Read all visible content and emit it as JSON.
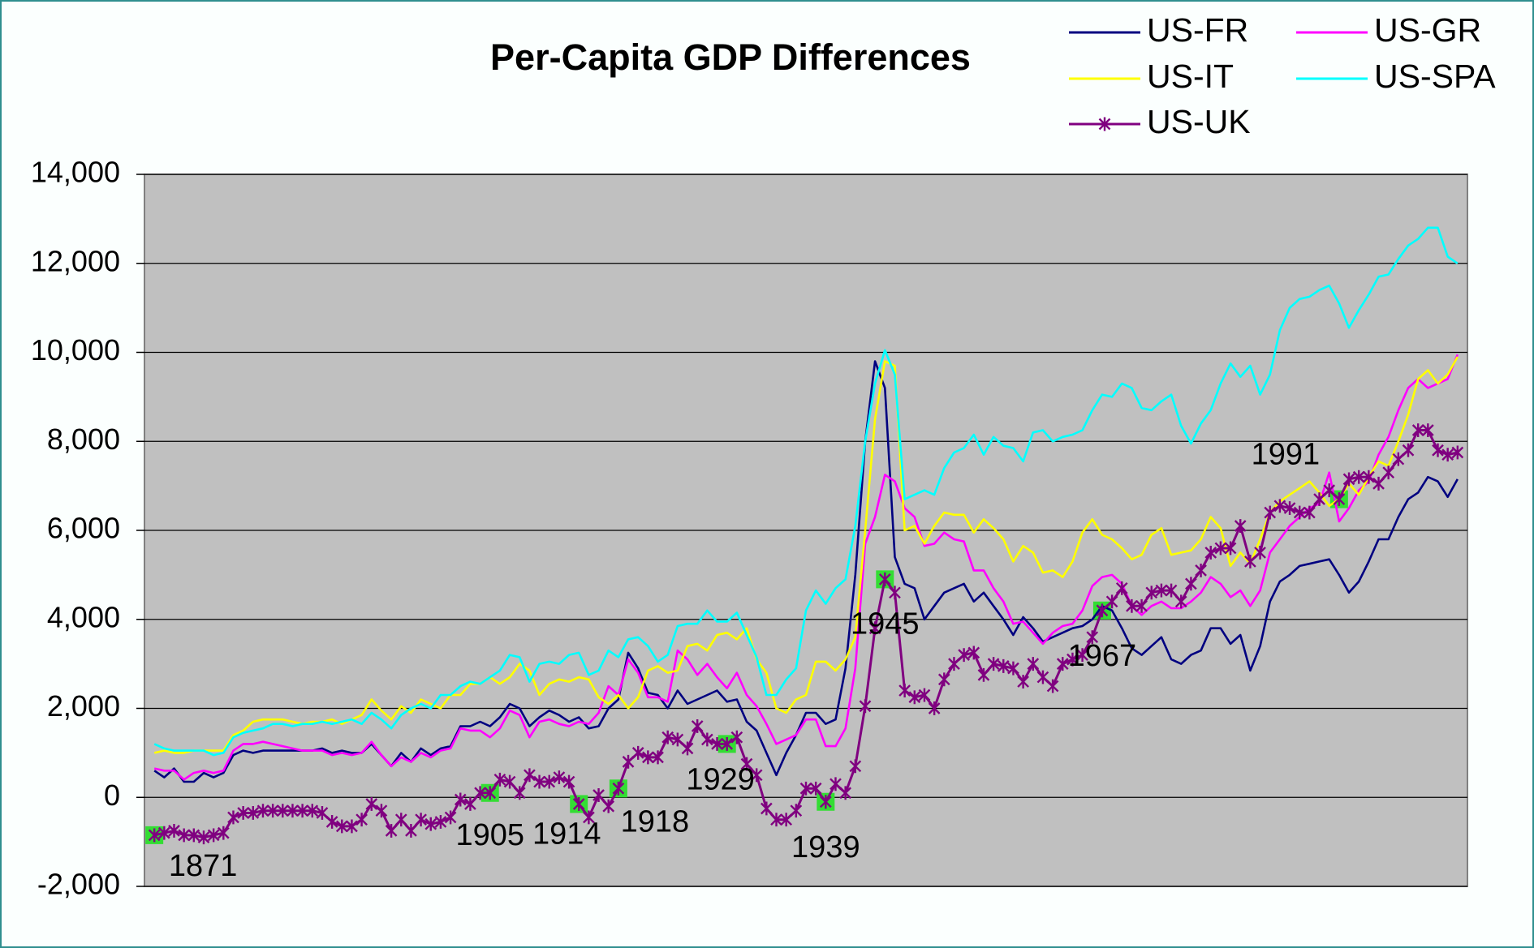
{
  "chart_data": {
    "type": "line",
    "title": "Per-Capita GDP Differences",
    "legend": "top-right",
    "grid": true,
    "xlim": [
      1870,
      2004
    ],
    "ylim": [
      -2000,
      14000
    ],
    "yticks": [
      {
        "value": -2000,
        "label": "-2,000"
      },
      0,
      {
        "value": 2000,
        "label": "2,000"
      },
      {
        "value": 4000,
        "label": "4,000"
      },
      {
        "value": 6000,
        "label": "6,000"
      },
      {
        "value": 8000,
        "label": "8,000"
      },
      {
        "value": 10000,
        "label": "10,000"
      },
      {
        "value": 12000,
        "label": "12,000"
      },
      {
        "value": 14000,
        "label": "14,000"
      }
    ],
    "x": [
      1871,
      1872,
      1873,
      1874,
      1875,
      1876,
      1877,
      1878,
      1879,
      1880,
      1881,
      1882,
      1883,
      1884,
      1885,
      1886,
      1887,
      1888,
      1889,
      1890,
      1891,
      1892,
      1893,
      1894,
      1895,
      1896,
      1897,
      1898,
      1899,
      1900,
      1901,
      1902,
      1903,
      1904,
      1905,
      1906,
      1907,
      1908,
      1909,
      1910,
      1911,
      1912,
      1913,
      1914,
      1915,
      1916,
      1917,
      1918,
      1919,
      1920,
      1921,
      1922,
      1923,
      1924,
      1925,
      1926,
      1927,
      1928,
      1929,
      1930,
      1931,
      1932,
      1933,
      1934,
      1935,
      1936,
      1937,
      1938,
      1939,
      1940,
      1941,
      1942,
      1943,
      1944,
      1945,
      1946,
      1947,
      1948,
      1949,
      1950,
      1951,
      1952,
      1953,
      1954,
      1955,
      1956,
      1957,
      1958,
      1959,
      1960,
      1961,
      1962,
      1963,
      1964,
      1965,
      1966,
      1967,
      1968,
      1969,
      1970,
      1971,
      1972,
      1973,
      1974,
      1975,
      1976,
      1977,
      1978,
      1979,
      1980,
      1981,
      1982,
      1983,
      1984,
      1985,
      1986,
      1987,
      1988,
      1989,
      1990,
      1991,
      1992,
      1993,
      1994,
      1995,
      1996,
      1997,
      1998,
      1999,
      2000,
      2001,
      2002,
      2003
    ],
    "series": [
      {
        "name": "US-FR",
        "color": "#000080",
        "values": [
          600,
          450,
          650,
          350,
          350,
          550,
          450,
          550,
          950,
          1050,
          1000,
          1050,
          1050,
          1050,
          1050,
          1050,
          1050,
          1100,
          1000,
          1050,
          1000,
          1000,
          1200,
          950,
          700,
          1000,
          800,
          1100,
          950,
          1100,
          1150,
          1600,
          1600,
          1700,
          1600,
          1800,
          2100,
          2000,
          1600,
          1800,
          1950,
          1850,
          1700,
          1800,
          1550,
          1600,
          2000,
          2200,
          3250,
          2900,
          2350,
          2300,
          2000,
          2400,
          2100,
          2200,
          2300,
          2400,
          2150,
          2200,
          1700,
          1500,
          1000,
          500,
          1000,
          1400,
          1900,
          1900,
          1650,
          1750,
          2900,
          5000,
          8000,
          9800,
          9200,
          5400,
          4800,
          4700,
          4000,
          4300,
          4600,
          4700,
          4800,
          4400,
          4600,
          4300,
          4000,
          3650,
          4050,
          3800,
          3500,
          3600,
          3700,
          3800,
          3850,
          4000,
          4300,
          4200,
          3800,
          3350,
          3200,
          3400,
          3600,
          3100,
          3000,
          3200,
          3300,
          3800,
          3800,
          3450,
          3650,
          2850,
          3400,
          4400,
          4850,
          5000,
          5200,
          5250,
          5300,
          5350,
          5000,
          4600,
          4850,
          5300,
          5800,
          5800,
          6300,
          6700,
          6850,
          7200,
          7100,
          6750,
          7150
        ]
      },
      {
        "name": "US-GR",
        "color": "#ff00ff",
        "values": [
          650,
          600,
          600,
          400,
          550,
          600,
          550,
          600,
          1050,
          1200,
          1200,
          1250,
          1200,
          1150,
          1100,
          1050,
          1050,
          1050,
          950,
          1000,
          950,
          1000,
          1250,
          950,
          700,
          900,
          800,
          1000,
          900,
          1050,
          1100,
          1550,
          1500,
          1500,
          1350,
          1550,
          1950,
          1850,
          1350,
          1700,
          1750,
          1650,
          1600,
          1700,
          1650,
          1900,
          2500,
          2300,
          3100,
          2800,
          2250,
          2250,
          2150,
          3300,
          3100,
          2750,
          3000,
          2700,
          2450,
          2800,
          2300,
          2050,
          1650,
          1200,
          1300,
          1400,
          1750,
          1750,
          1150,
          1150,
          1550,
          2900,
          5700,
          6300,
          7250,
          7100,
          6500,
          6300,
          5650,
          5700,
          5950,
          5800,
          5750,
          5100,
          5100,
          4700,
          4400,
          3900,
          3950,
          3700,
          3450,
          3700,
          3850,
          3900,
          4200,
          4750,
          4950,
          5000,
          4800,
          4300,
          4100,
          4300,
          4400,
          4250,
          4250,
          4400,
          4600,
          4950,
          4800,
          4500,
          4650,
          4300,
          4650,
          5500,
          5800,
          6100,
          6300,
          6500,
          6600,
          7300,
          6200,
          6500,
          6900,
          7100,
          7700,
          8100,
          8700,
          9200,
          9400,
          9200,
          9300,
          9400,
          9950
        ]
      },
      {
        "name": "US-IT",
        "color": "#ffff00",
        "values": [
          1000,
          1050,
          1000,
          1000,
          1050,
          1050,
          1050,
          1050,
          1400,
          1500,
          1700,
          1750,
          1750,
          1750,
          1700,
          1650,
          1700,
          1700,
          1750,
          1650,
          1750,
          1850,
          2200,
          1950,
          1750,
          2050,
          1900,
          2200,
          2100,
          2000,
          2300,
          2300,
          2550,
          2550,
          2700,
          2550,
          2700,
          3000,
          2850,
          2300,
          2550,
          2650,
          2600,
          2700,
          2650,
          2250,
          2100,
          2300,
          2000,
          2250,
          2850,
          2950,
          2800,
          2850,
          3400,
          3450,
          3300,
          3650,
          3700,
          3550,
          3800,
          3100,
          2800,
          2000,
          1900,
          2200,
          2300,
          3050,
          3050,
          2850,
          3100,
          3600,
          6000,
          8500,
          9800,
          9700,
          6000,
          6100,
          5700,
          6100,
          6400,
          6350,
          6350,
          5950,
          6250,
          6050,
          5800,
          5300,
          5650,
          5500,
          5050,
          5100,
          4950,
          5300,
          5950,
          6250,
          5900,
          5800,
          5600,
          5350,
          5450,
          5900,
          6050,
          5450,
          5500,
          5550,
          5800,
          6300,
          6050,
          5200,
          5500,
          5250,
          5800,
          6400,
          6650,
          6800,
          6950,
          7100,
          6850,
          6550,
          6700,
          7050,
          6800,
          7200,
          7550,
          7450,
          8000,
          8600,
          9400,
          9600,
          9300,
          9500,
          9900
        ]
      },
      {
        "name": "US-SPA",
        "color": "#00ffff",
        "values": [
          1200,
          1100,
          1050,
          1050,
          1050,
          1050,
          950,
          1000,
          1350,
          1450,
          1500,
          1550,
          1650,
          1650,
          1600,
          1650,
          1650,
          1700,
          1650,
          1700,
          1750,
          1650,
          1900,
          1750,
          1550,
          1850,
          2000,
          2100,
          2000,
          2300,
          2300,
          2500,
          2600,
          2550,
          2700,
          2850,
          3200,
          3150,
          2600,
          3000,
          3050,
          3000,
          3200,
          3250,
          2750,
          2850,
          3300,
          3150,
          3550,
          3600,
          3400,
          3050,
          3200,
          3850,
          3900,
          3900,
          4200,
          3950,
          3950,
          4150,
          3650,
          3150,
          2300,
          2300,
          2650,
          2900,
          4200,
          4650,
          4350,
          4700,
          4900,
          6100,
          8000,
          9300,
          10050,
          9500,
          6700,
          6800,
          6900,
          6800,
          7400,
          7750,
          7850,
          8150,
          7700,
          8100,
          7900,
          7850,
          7550,
          8200,
          8250,
          8000,
          8100,
          8150,
          8250,
          8700,
          9050,
          9000,
          9300,
          9200,
          8750,
          8700,
          8900,
          9050,
          8350,
          7950,
          8400,
          8700,
          9300,
          9750,
          9450,
          9700,
          9050,
          9500,
          10500,
          11000,
          11200,
          11250,
          11400,
          11500,
          11100,
          10550,
          10950,
          11300,
          11700,
          11750,
          12100,
          12400,
          12550,
          12800,
          12800,
          12150,
          12000
        ]
      },
      {
        "name": "US-UK",
        "color": "#800080",
        "marker": "star",
        "values": [
          -850,
          -800,
          -750,
          -850,
          -850,
          -900,
          -850,
          -800,
          -450,
          -350,
          -350,
          -300,
          -300,
          -300,
          -300,
          -300,
          -300,
          -350,
          -550,
          -650,
          -650,
          -500,
          -150,
          -300,
          -750,
          -500,
          -750,
          -500,
          -600,
          -550,
          -450,
          -50,
          -150,
          100,
          100,
          400,
          350,
          100,
          500,
          350,
          350,
          450,
          350,
          -150,
          -450,
          50,
          -200,
          200,
          800,
          1000,
          900,
          900,
          1350,
          1300,
          1100,
          1600,
          1300,
          1200,
          1200,
          1350,
          750,
          500,
          -250,
          -500,
          -500,
          -300,
          200,
          200,
          -100,
          300,
          100,
          700,
          2050,
          3800,
          4900,
          4600,
          2400,
          2250,
          2300,
          2000,
          2650,
          3000,
          3200,
          3250,
          2750,
          3000,
          2950,
          2900,
          2600,
          3000,
          2700,
          2500,
          3000,
          3100,
          3200,
          3600,
          4200,
          4400,
          4700,
          4300,
          4300,
          4600,
          4650,
          4650,
          4400,
          4800,
          5100,
          5500,
          5600,
          5600,
          6100,
          5300,
          5500,
          6400,
          6550,
          6500,
          6400,
          6400,
          6700,
          6900,
          6700,
          7150,
          7200,
          7200,
          7050,
          7300,
          7600,
          7800,
          8250,
          8250,
          7800,
          7700,
          7750
        ]
      }
    ],
    "annotations": [
      "1871",
      "1905",
      "1914",
      "1918",
      "1929",
      "1939",
      "1945",
      "1967",
      "1991"
    ]
  }
}
